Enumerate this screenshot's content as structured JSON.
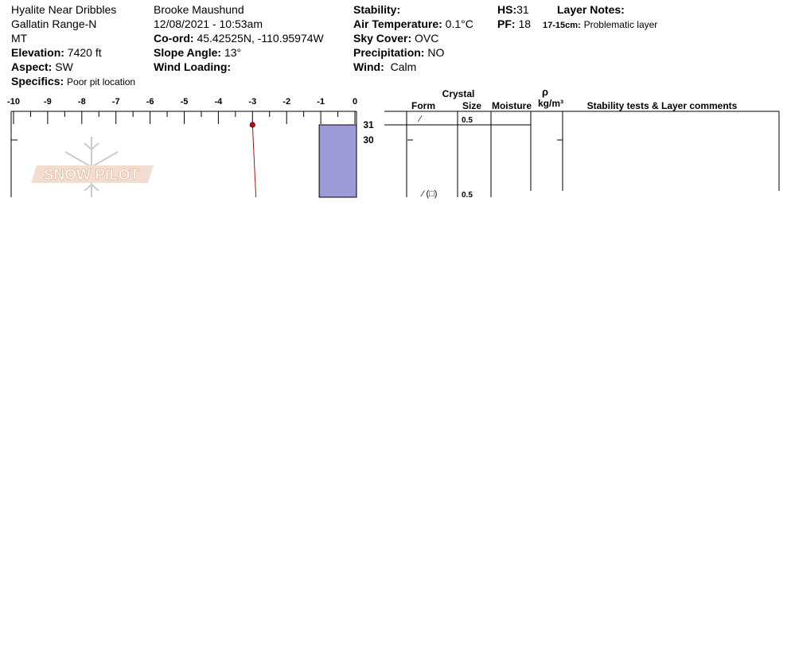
{
  "header": {
    "location": "Hyalite Near Dribbles",
    "range": "Gallatin Range-N",
    "state": "MT",
    "elevation_label": "Elevation:",
    "elevation": "7420 ft",
    "aspect_label": "Aspect:",
    "aspect": "SW",
    "specifics_label": "Specifics:",
    "specifics": "Poor pit location",
    "observer": "Brooke Maushund",
    "datetime": "12/08/2021 - 10:53am",
    "coord_label": "Co-ord:",
    "coord": "45.42525N, -110.95974W",
    "slope_label": "Slope Angle:",
    "slope": "13°",
    "wind_loading_label": "Wind Loading:",
    "wind_loading": "",
    "stability_label": "Stability:",
    "stability": "",
    "air_temp_label": "Air Temperature:",
    "air_temp": "0.1°C",
    "sky_label": "Sky Cover:",
    "sky": "OVC",
    "precip_label": "Precipitation:",
    "precip": "NO",
    "wind_label": "Wind:",
    "wind": "Calm",
    "hs_label": "HS:",
    "hs": "31",
    "pf_label": "PF:",
    "pf": "18",
    "layer_notes_label": "Layer Notes:",
    "layer_note_range": "17-15cm:",
    "layer_note_text": "Problematic layer"
  },
  "watermark": "SNOW PILOT",
  "table_headers": {
    "crystal": "Crystal",
    "form": "Form",
    "size": "Size",
    "moisture": "Moisture",
    "rho": "ρ",
    "density_unit": "kg/m³",
    "comments": "Stability tests & Layer comments"
  },
  "layers": [
    {
      "form": "⁄",
      "size": "0.5"
    },
    {
      "form": "⁄ (□)",
      "size": "0.5"
    }
  ],
  "chart_data": {
    "type": "line",
    "x_ticks": [
      "-10",
      "-9",
      "-8",
      "-7",
      "-6",
      "-5",
      "-4",
      "-3",
      "-2",
      "-1",
      "0"
    ],
    "xlim": [
      -10,
      0
    ],
    "height_ticks": [
      "31",
      "30"
    ],
    "temperature_profile": [
      {
        "height_cm": 31,
        "temp_c": -3.0
      },
      {
        "height_cm": 26,
        "temp_c": -2.9
      }
    ],
    "hand_hardness": [
      {
        "top_cm": 31,
        "bottom_cm": 26,
        "hardness": "-1"
      }
    ],
    "colors": {
      "hardness_fill": "#9b9bd8",
      "temp_line": "#b01010",
      "watermark_text": "#e9c9b8",
      "watermark_flake": "#c8ccd2"
    }
  }
}
